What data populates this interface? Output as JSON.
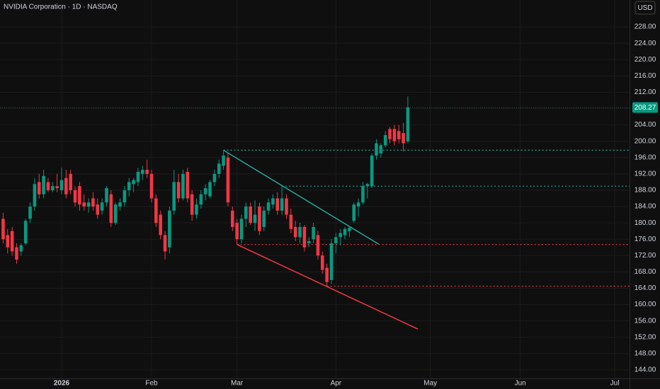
{
  "chart_data": {
    "type": "candlestick",
    "title": "NVIDIA Corporation · 1D · NASDAQ",
    "currency": "USD",
    "up_color": "#089981",
    "down_color": "#f23645",
    "xlim": [
      -0.7,
      139.3
    ],
    "ylim": [
      141.9,
      234.6
    ],
    "xticks": [
      {
        "value": 13,
        "label": "2026"
      },
      {
        "value": 33,
        "label": "Feb"
      },
      {
        "value": 52,
        "label": "Mar"
      },
      {
        "value": 74,
        "label": "Apr"
      },
      {
        "value": 95,
        "label": "May"
      },
      {
        "value": 115,
        "label": "Jun"
      },
      {
        "value": 136,
        "label": "Jul"
      }
    ],
    "yticks": [
      {
        "value": 144,
        "label": "144.00"
      },
      {
        "value": 148,
        "label": "148.00"
      },
      {
        "value": 152,
        "label": "152.00"
      },
      {
        "value": 156,
        "label": "156.00"
      },
      {
        "value": 160,
        "label": "160.00"
      },
      {
        "value": 164,
        "label": "164.00"
      },
      {
        "value": 168,
        "label": "168.00"
      },
      {
        "value": 172,
        "label": "172.00"
      },
      {
        "value": 176,
        "label": "176.00"
      },
      {
        "value": 180,
        "label": "180.00"
      },
      {
        "value": 184,
        "label": "184.00"
      },
      {
        "value": 188,
        "label": "188.00"
      },
      {
        "value": 192,
        "label": "192.00"
      },
      {
        "value": 196,
        "label": "196.00"
      },
      {
        "value": 200,
        "label": "200.00"
      },
      {
        "value": 204,
        "label": "204.00"
      },
      {
        "value": 208,
        "label": "208.00"
      },
      {
        "value": 212,
        "label": "212.00"
      },
      {
        "value": 216,
        "label": "216.00"
      },
      {
        "value": 220,
        "label": "220.00"
      },
      {
        "value": 224,
        "label": "224.00"
      },
      {
        "value": 228,
        "label": "228.00"
      }
    ],
    "grid": true,
    "last_price": 208.27,
    "series": {
      "open": [
        181,
        177,
        178,
        174,
        173,
        175,
        181,
        184,
        190,
        187,
        190,
        188,
        189,
        188,
        191,
        192,
        188,
        189,
        185,
        184,
        186,
        184.5,
        183,
        185,
        187,
        180,
        184,
        185,
        188,
        189.5,
        190,
        192,
        193,
        192,
        186,
        182,
        177,
        174,
        183,
        190,
        186,
        192.5,
        187,
        182,
        184.5,
        187,
        186.5,
        190,
        192,
        194,
        196,
        183,
        180,
        176,
        181,
        184,
        180,
        184,
        179,
        183,
        184.5,
        186,
        183,
        186,
        182,
        179,
        176.5,
        179,
        175,
        176,
        177,
        172,
        169,
        166,
        175,
        176.5,
        177,
        178,
        180.5,
        184,
        185,
        189,
        189,
        196.5,
        197,
        199,
        203,
        203,
        202.5,
        202,
        200
      ],
      "high": [
        182.5,
        178.5,
        179,
        175,
        175,
        181,
        185,
        191,
        192,
        193,
        191,
        190,
        192,
        193.5,
        193,
        193,
        189,
        190,
        187,
        186,
        187.5,
        186,
        186,
        189,
        188,
        185,
        186,
        189,
        191,
        191,
        193.5,
        194,
        195.5,
        193,
        187,
        183,
        178,
        184,
        193,
        192,
        193,
        193.5,
        188,
        186,
        188,
        189.5,
        190.5,
        193,
        195.5,
        197.8,
        197,
        184,
        181,
        182,
        185,
        185,
        185.5,
        185,
        184,
        186,
        187,
        187.5,
        189,
        187,
        183.5,
        180.5,
        180,
        179.5,
        176.5,
        180,
        178,
        173,
        170,
        176,
        177.5,
        178.5,
        179,
        179,
        185,
        186,
        190,
        189.8,
        197,
        200.5,
        199.5,
        202.5,
        203.5,
        204,
        204,
        204.5,
        211
      ],
      "low": [
        175,
        172.5,
        172,
        170,
        172,
        174.5,
        180,
        183,
        186,
        186,
        187.5,
        187.5,
        187.5,
        187,
        186,
        187,
        184,
        183,
        183,
        182.5,
        183,
        181,
        182,
        184,
        179,
        179.5,
        183,
        184,
        186.5,
        187.5,
        189,
        190.5,
        191,
        185,
        179,
        176,
        171,
        172.5,
        182,
        185,
        185.5,
        185,
        180.5,
        181,
        183.5,
        185.5,
        186,
        189,
        191,
        193,
        184,
        178,
        174.7,
        175,
        179,
        179.5,
        178,
        177,
        178,
        182,
        183.5,
        182,
        182,
        181,
        177.5,
        175.5,
        175,
        173,
        174,
        175,
        171,
        167.5,
        164.5,
        165,
        172.5,
        174.5,
        176,
        176.5,
        180,
        181.5,
        184.5,
        186,
        188.5,
        195.5,
        196,
        198.5,
        199.5,
        199,
        199.5,
        197.5,
        199.5
      ],
      "close": [
        176,
        174,
        173,
        171,
        174.5,
        180.5,
        184,
        189.5,
        187,
        191.5,
        188,
        189,
        188.5,
        190.5,
        187,
        188,
        185,
        184.5,
        184,
        185,
        184,
        182,
        185,
        188.5,
        180,
        184.5,
        185,
        188,
        190,
        190.5,
        192.5,
        193,
        192,
        186,
        180,
        177,
        173,
        183,
        190,
        186,
        192,
        186,
        182,
        184.5,
        187,
        188.5,
        190,
        192,
        194.5,
        196.5,
        185,
        179,
        176,
        181,
        184,
        180,
        182,
        178,
        183,
        185,
        186,
        183,
        186,
        182,
        178.5,
        176.5,
        179,
        174,
        175.5,
        179,
        172,
        168.5,
        165.5,
        175,
        176.5,
        177.5,
        178.5,
        178.8,
        184.5,
        185,
        189,
        189.5,
        196.5,
        199.5,
        199,
        201.5,
        200.5,
        200,
        200.5,
        199.5,
        208.27
      ]
    },
    "trendlines": [
      {
        "x": [
          49,
          83.5
        ],
        "y": [
          197.8,
          174.8
        ],
        "color": "#26a69a"
      },
      {
        "x": [
          52,
          92.2
        ],
        "y": [
          174.7,
          154
        ],
        "color": "#f23645"
      }
    ],
    "levels": [
      {
        "value": 197.8,
        "start": 49,
        "color": "#26a69a"
      },
      {
        "value": 189,
        "start": 62,
        "color": "#26a69a"
      },
      {
        "value": 174.7,
        "start": 52,
        "color": "#f23645"
      },
      {
        "value": 164.5,
        "start": 72,
        "color": "#f23645"
      }
    ]
  }
}
